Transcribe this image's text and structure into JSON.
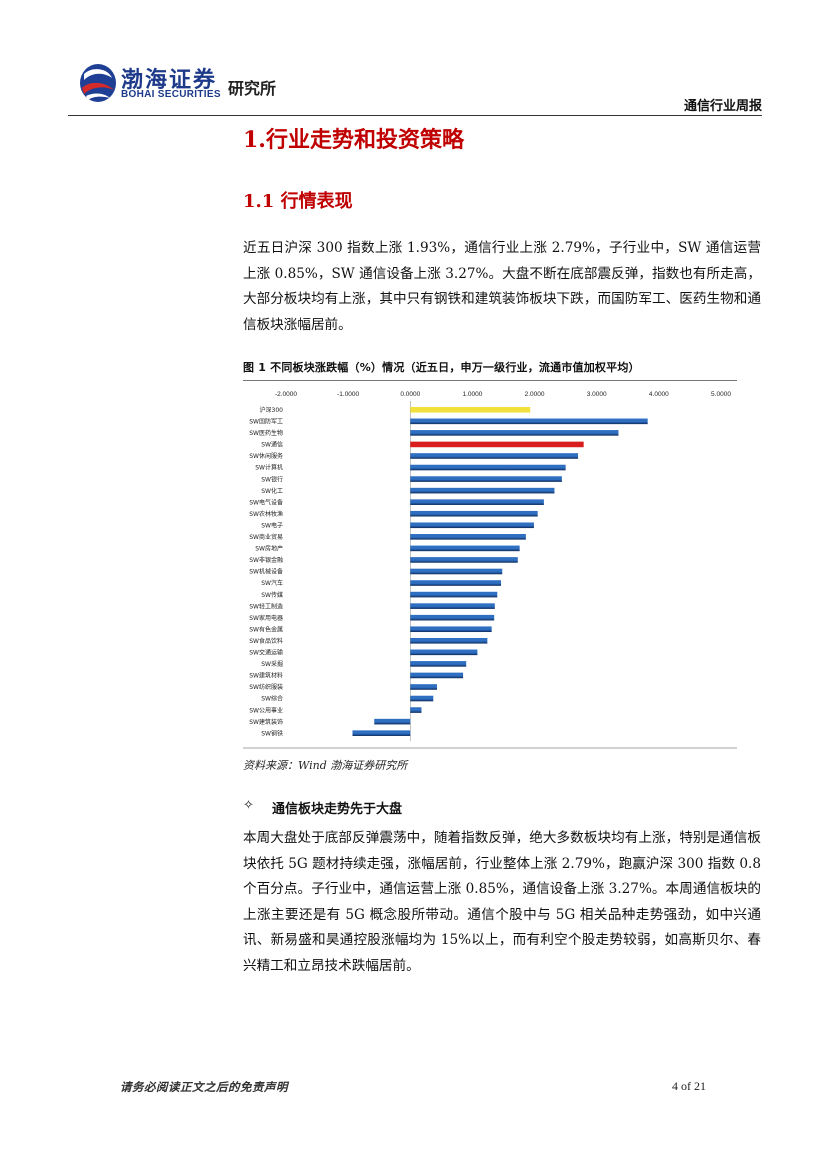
{
  "header": {
    "brand_cn": "渤海证券",
    "brand_en": "BOHAI SECURITIES",
    "institute": "研究所",
    "report_type": "通信行业周报"
  },
  "section": {
    "h1": "1.行业走势和投资策略",
    "h2": "1.1 行情表现"
  },
  "paragraph1": "近五日沪深 300 指数上涨 1.93%，通信行业上涨 2.79%，子行业中，SW 通信运营上涨 0.85%，SW 通信设备上涨 3.27%。大盘不断在底部震反弹，指数也有所走高，大部分板块均有上涨，其中只有钢铁和建筑装饰板块下跌，而国防军工、医药生物和通信板块涨幅居前。",
  "figure": {
    "caption": "图 1 不同板块涨跌幅（%）情况（近五日，申万一级行业，流通市值加权平均）",
    "source": "资料来源：Wind 渤海证券研究所"
  },
  "chart_data": {
    "type": "bar",
    "orientation": "horizontal",
    "xlim": [
      -2.0,
      5.0
    ],
    "ticks": [
      "-2.0000",
      "-1.0000",
      "0.0000",
      "1.0000",
      "2.0000",
      "3.0000",
      "4.0000",
      "5.0000"
    ],
    "tick_values": [
      -2,
      -1,
      0,
      1,
      2,
      3,
      4,
      5
    ],
    "categories": [
      "沪深300",
      "SW国防军工",
      "SW医药生物",
      "SW通信",
      "SW休闲服务",
      "SW计算机",
      "SW银行",
      "SW化工",
      "SW电气设备",
      "SW农林牧渔",
      "SW电子",
      "SW商业贸易",
      "SW房地产",
      "SW非银金融",
      "SW机械设备",
      "SW汽车",
      "SW传媒",
      "SW轻工制造",
      "SW家用电器",
      "SW有色金属",
      "SW食品饮料",
      "SW交通运输",
      "SW采掘",
      "SW建筑材料",
      "SW纺织服装",
      "SW综合",
      "SW公用事业",
      "SW建筑装饰",
      "SW钢铁"
    ],
    "values": [
      1.93,
      3.82,
      3.35,
      2.79,
      2.7,
      2.5,
      2.44,
      2.32,
      2.15,
      2.05,
      1.99,
      1.86,
      1.76,
      1.73,
      1.48,
      1.46,
      1.4,
      1.36,
      1.35,
      1.31,
      1.24,
      1.08,
      0.9,
      0.85,
      0.43,
      0.37,
      0.18,
      -0.58,
      -0.93
    ],
    "highlight": {
      "沪深300": "#f2e13c",
      "SW通信": "#d81e1e"
    },
    "default_color": "#2f6fc2",
    "grid": false
  },
  "bullet": {
    "icon": "✧",
    "title": "通信板块走势先于大盘"
  },
  "paragraph2": "本周大盘处于底部反弹震荡中，随着指数反弹，绝大多数板块均有上涨，特别是通信板块依托 5G 题材持续走强，涨幅居前，行业整体上涨 2.79%，跑赢沪深 300 指数 0.8 个百分点。子行业中，通信运营上涨 0.85%，通信设备上涨 3.27%。本周通信板块的上涨主要还是有 5G 概念股所带动。通信个股中与 5G 相关品种走势强劲，如中兴通讯、新易盛和昊通控股涨幅均为 15%以上，而有利空个股走势较弱，如高斯贝尔、春兴精工和立昂技术跌幅居前。",
  "footer": {
    "disclaimer": "请务必阅读正文之后的免责声明",
    "page": "4 of 21"
  }
}
